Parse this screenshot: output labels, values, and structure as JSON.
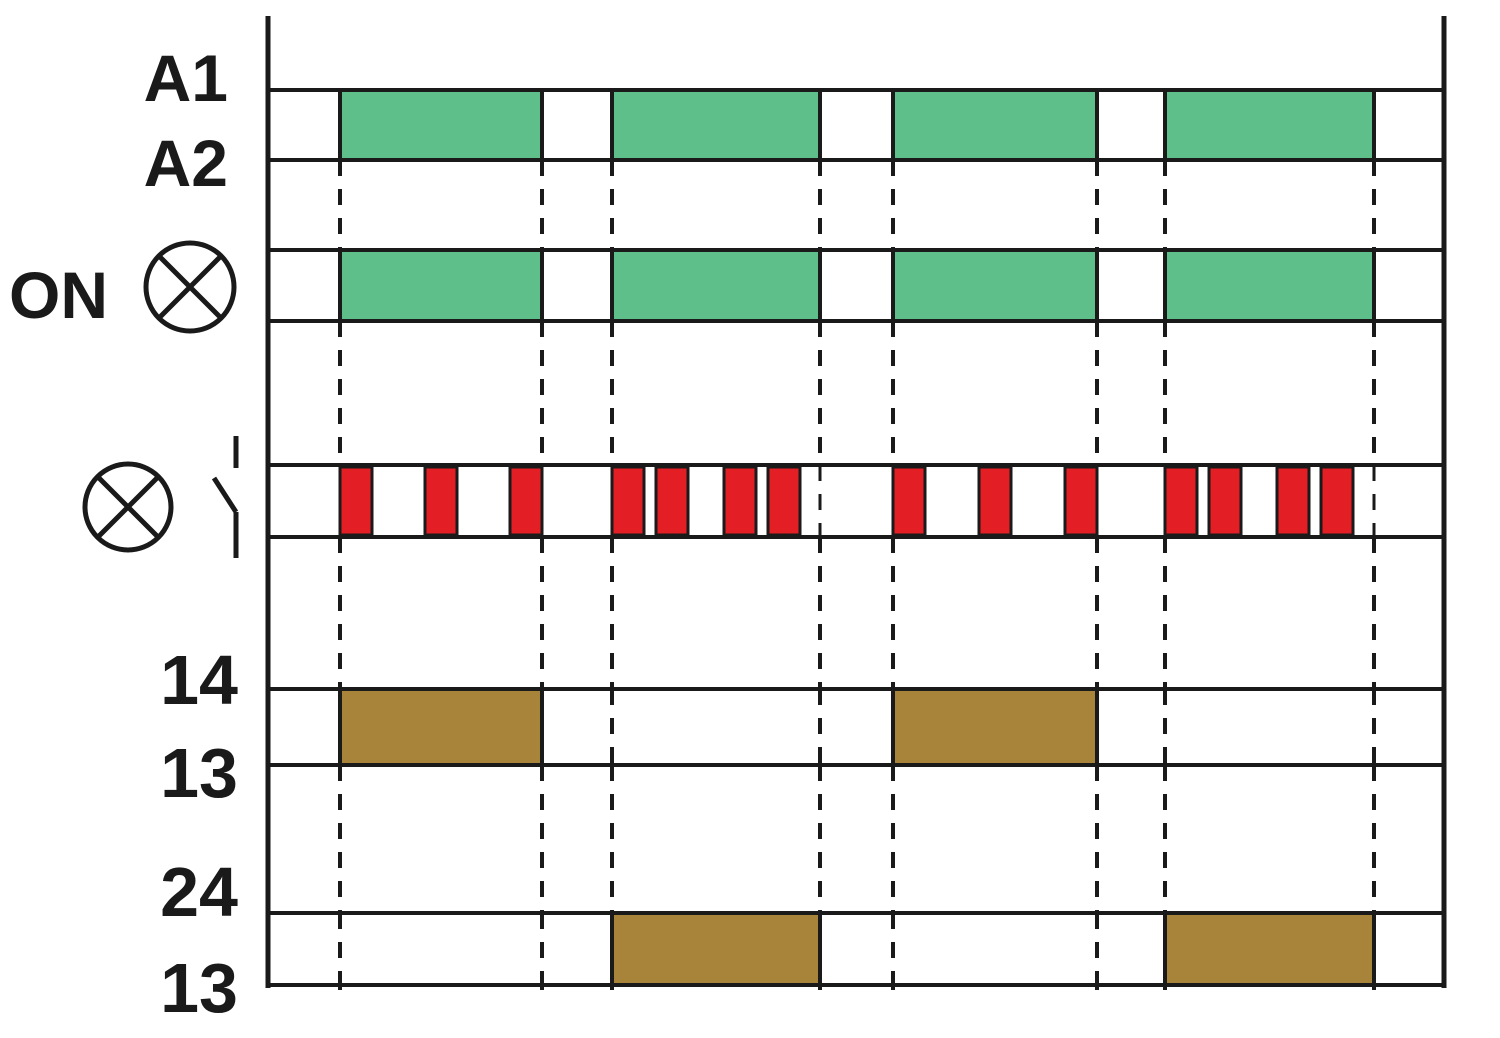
{
  "labels": {
    "a1": "A1",
    "a2": "A2",
    "on": "ON",
    "t14": "14",
    "t13a": "13",
    "t24": "24",
    "t13b": "13"
  },
  "colors": {
    "supply": "#5fbf8b",
    "led_blink": "#e31e24",
    "contact": "#a8843a",
    "line": "#1a1a1a"
  },
  "icons": {
    "lamp_on": "indicator-lamp-icon",
    "lamp_blink": "indicator-lamp-icon",
    "switch": "switch-contact-icon"
  },
  "timing": {
    "cycles": [
      {
        "on_start": 1,
        "on_end": 4,
        "output": "14"
      },
      {
        "on_start": 5,
        "on_end": 8,
        "output": "24"
      },
      {
        "on_start": 9,
        "on_end": 12,
        "output": "14"
      },
      {
        "on_start": 13,
        "on_end": 16,
        "output": "24"
      }
    ],
    "blink_groups": [
      {
        "cycle": 1,
        "pattern": "single",
        "pulses": 3
      },
      {
        "cycle": 2,
        "pattern": "double",
        "pulses": 4
      },
      {
        "cycle": 3,
        "pattern": "single",
        "pulses": 3
      },
      {
        "cycle": 4,
        "pattern": "double",
        "pulses": 4
      }
    ]
  }
}
